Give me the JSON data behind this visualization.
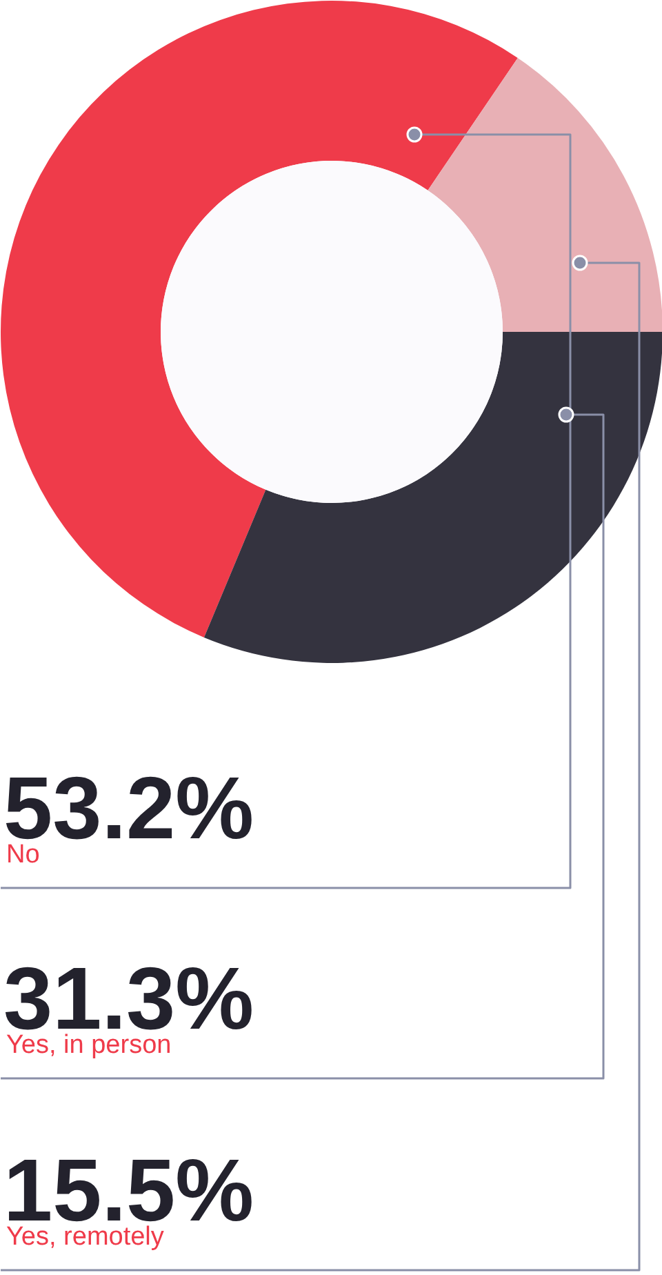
{
  "chart_data": {
    "type": "donut",
    "categories": [
      "No",
      "Yes, in person",
      "Yes, remotely"
    ],
    "values": [
      53.2,
      31.3,
      15.5
    ],
    "colors": [
      "#ef3b4a",
      "#34333f",
      "#e8b0b5"
    ],
    "value_labels": [
      "53.2%",
      "31.3%",
      "15.5%"
    ]
  }
}
